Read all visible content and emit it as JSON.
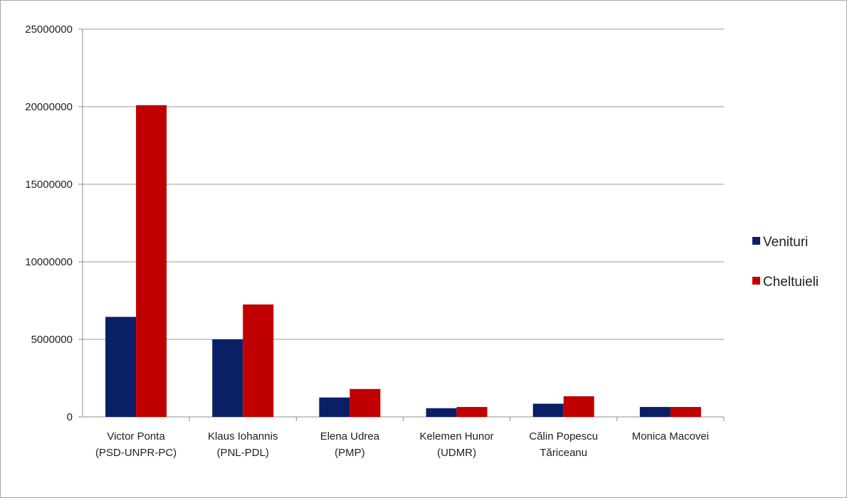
{
  "chart_data": {
    "type": "bar",
    "title": "",
    "xlabel": "",
    "ylabel": "",
    "ylim": [
      0,
      25000000
    ],
    "yticks": [
      0,
      5000000,
      10000000,
      15000000,
      20000000,
      25000000
    ],
    "grid": true,
    "legend_position": "right",
    "categories": [
      [
        "Victor Ponta",
        "(PSD-UNPR-PC)"
      ],
      [
        "Klaus Iohannis",
        "(PNL-PDL)"
      ],
      [
        "Elena Udrea",
        "(PMP)"
      ],
      [
        "Kelemen Hunor",
        "(UDMR)"
      ],
      [
        "Călin Popescu",
        "Tăriceanu"
      ],
      [
        "Monica Macovei"
      ]
    ],
    "series": [
      {
        "name": "Venituri",
        "color": "#0b1f66",
        "values": [
          6450000,
          5000000,
          1250000,
          560000,
          850000,
          640000
        ]
      },
      {
        "name": "Cheltuieli",
        "color": "#c00000",
        "values": [
          20100000,
          7250000,
          1800000,
          640000,
          1330000,
          640000
        ]
      }
    ]
  }
}
